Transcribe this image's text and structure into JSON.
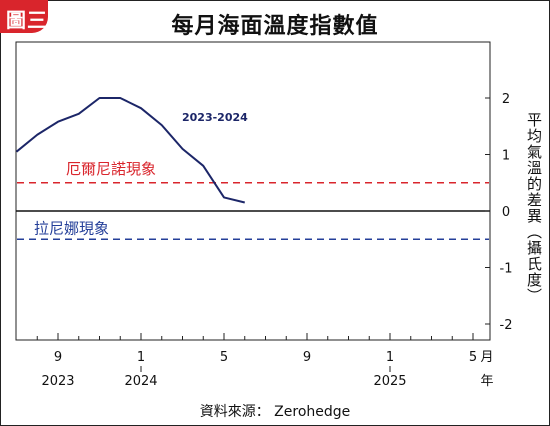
{
  "badge": "圖三",
  "colors": {
    "series": "#1c2668",
    "elnino": "#d9252c",
    "lanina": "#243f99",
    "frame": "#222222"
  },
  "chart_data": {
    "type": "line",
    "title": "每月海面溫度指數值",
    "ylabel": "平均氣溫的差異（攝氏度）",
    "xlabel": "",
    "x_unit_label": "月",
    "x_unit_label2": "年",
    "ylim": [
      -2.3,
      2.95
    ],
    "grid": false,
    "y_ticks": [
      2,
      1,
      0,
      -1,
      -2
    ],
    "x_tick_labels": [
      "9",
      "1",
      "5",
      "9",
      "1",
      "5"
    ],
    "year_labels": [
      "2023",
      "2024",
      "2025"
    ],
    "series": [
      {
        "name": "2023-2024",
        "x": [
          "2023-07",
          "2023-08",
          "2023-09",
          "2023-10",
          "2023-11",
          "2023-12",
          "2024-01",
          "2024-02",
          "2024-03",
          "2024-04",
          "2024-05",
          "2024-06"
        ],
        "values": [
          1.05,
          1.35,
          1.58,
          1.72,
          2.0,
          2.0,
          1.82,
          1.52,
          1.1,
          0.8,
          0.24,
          0.15
        ]
      }
    ],
    "reference_lines": [
      {
        "label": "厄爾尼諾現象",
        "value": 0.5
      },
      {
        "label": "拉尼娜現象",
        "value": -0.5
      }
    ]
  },
  "source": "資料來源： Zerohedge"
}
